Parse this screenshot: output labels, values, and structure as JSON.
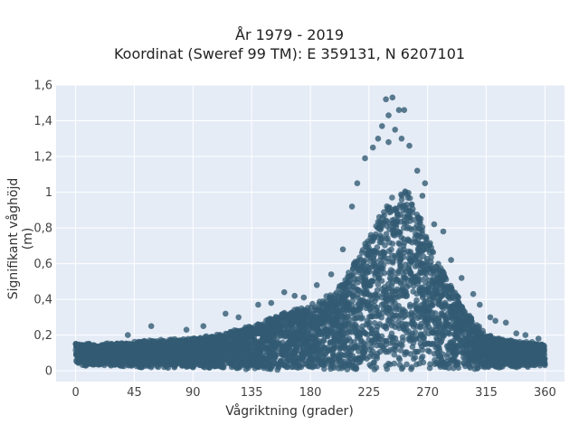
{
  "chart_data": {
    "type": "scatter",
    "title": "År 1979 - 2019",
    "subtitle": "Koordinat (Sweref 99 TM): E 359131, N 6207101",
    "xlabel": "Vågriktning (grader)",
    "ylabel": "Signifikant våghöjd (m)",
    "xlim": [
      -15,
      375
    ],
    "ylim": [
      -0.06,
      1.6
    ],
    "xticks": [
      0,
      45,
      90,
      135,
      180,
      225,
      270,
      315,
      360
    ],
    "yticks": [
      0,
      0.2,
      0.4,
      0.6,
      0.8,
      1.0,
      1.2,
      1.4,
      1.6
    ],
    "ytick_labels": [
      "0",
      "0,2",
      "0,4",
      "0,6",
      "0,8",
      "1",
      "1,2",
      "1,4",
      "1,6"
    ],
    "grid": true,
    "marker_color": "#335b73",
    "envelope": {
      "x": [
        0,
        20,
        45,
        60,
        90,
        110,
        135,
        150,
        170,
        185,
        200,
        215,
        225,
        235,
        245,
        255,
        265,
        275,
        290,
        305,
        315,
        330,
        345,
        360
      ],
      "y_max": [
        0.15,
        0.15,
        0.16,
        0.17,
        0.18,
        0.2,
        0.25,
        0.3,
        0.35,
        0.38,
        0.45,
        0.62,
        0.75,
        0.9,
        1.0,
        1.0,
        0.85,
        0.65,
        0.45,
        0.28,
        0.2,
        0.17,
        0.16,
        0.15
      ],
      "y_min": [
        0.03,
        0.03,
        0.02,
        0.02,
        0.02,
        0.02,
        0.01,
        0.01,
        0.01,
        0.01,
        0.01,
        0.01,
        0.01,
        0.01,
        0.01,
        0.01,
        0.01,
        0.01,
        0.01,
        0.01,
        0.02,
        0.02,
        0.02,
        0.03
      ]
    },
    "outliers": [
      {
        "x": 238,
        "y": 1.52
      },
      {
        "x": 243,
        "y": 1.53
      },
      {
        "x": 248,
        "y": 1.46
      },
      {
        "x": 252,
        "y": 1.46
      },
      {
        "x": 240,
        "y": 1.43
      },
      {
        "x": 235,
        "y": 1.37
      },
      {
        "x": 245,
        "y": 1.35
      },
      {
        "x": 232,
        "y": 1.3
      },
      {
        "x": 250,
        "y": 1.3
      },
      {
        "x": 228,
        "y": 1.25
      },
      {
        "x": 256,
        "y": 1.26
      },
      {
        "x": 240,
        "y": 1.28
      },
      {
        "x": 222,
        "y": 1.19
      },
      {
        "x": 262,
        "y": 1.12
      },
      {
        "x": 216,
        "y": 1.05
      },
      {
        "x": 212,
        "y": 0.92
      },
      {
        "x": 266,
        "y": 0.98
      },
      {
        "x": 275,
        "y": 0.82
      },
      {
        "x": 282,
        "y": 0.78
      },
      {
        "x": 288,
        "y": 0.62
      },
      {
        "x": 296,
        "y": 0.52
      },
      {
        "x": 305,
        "y": 0.43
      },
      {
        "x": 310,
        "y": 0.37
      },
      {
        "x": 318,
        "y": 0.3
      },
      {
        "x": 322,
        "y": 0.28
      },
      {
        "x": 330,
        "y": 0.27
      },
      {
        "x": 338,
        "y": 0.21
      },
      {
        "x": 345,
        "y": 0.2
      },
      {
        "x": 355,
        "y": 0.18
      },
      {
        "x": 160,
        "y": 0.44
      },
      {
        "x": 168,
        "y": 0.42
      },
      {
        "x": 150,
        "y": 0.38
      },
      {
        "x": 140,
        "y": 0.37
      },
      {
        "x": 125,
        "y": 0.3
      },
      {
        "x": 115,
        "y": 0.32
      },
      {
        "x": 98,
        "y": 0.25
      },
      {
        "x": 85,
        "y": 0.23
      },
      {
        "x": 58,
        "y": 0.25
      },
      {
        "x": 40,
        "y": 0.2
      },
      {
        "x": 185,
        "y": 0.48
      },
      {
        "x": 196,
        "y": 0.54
      },
      {
        "x": 205,
        "y": 0.68
      },
      {
        "x": 175,
        "y": 0.41
      },
      {
        "x": 268,
        "y": 1.05
      }
    ]
  }
}
